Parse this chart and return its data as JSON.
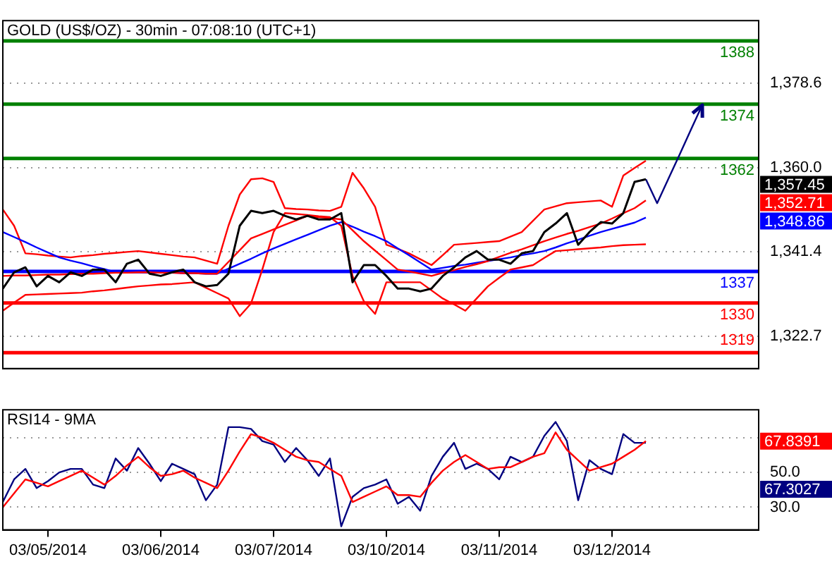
{
  "chart_data": [
    {
      "type": "line",
      "title": "GOLD (US$/OZ) - 30min - 07:08:10 (UTC+1)",
      "categories": [
        null,
        null,
        null,
        null,
        null,
        null,
        null,
        null,
        null,
        null,
        null,
        null,
        null,
        null,
        null,
        null,
        null,
        null,
        null,
        null,
        null,
        null,
        null,
        null,
        null,
        null,
        null,
        null,
        null,
        null,
        null,
        null,
        null,
        null,
        null,
        null,
        null,
        null,
        null,
        null,
        null,
        null,
        null,
        null,
        null,
        null,
        null,
        null,
        null,
        null,
        null,
        null,
        null,
        null,
        null,
        null,
        null,
        null,
        null,
        null,
        null,
        null,
        null,
        null,
        null,
        null,
        null,
        null
      ],
      "ylim": [
        1315.5,
        1392.5
      ],
      "yticks": [
        {
          "value": 1322.7,
          "label": "1,322.7"
        },
        {
          "value": 1341.4,
          "label": "1,341.4"
        },
        {
          "value": 1360.0,
          "label": "1,360.0"
        },
        {
          "value": 1378.6,
          "label": "1,378.6"
        }
      ],
      "grid": "y",
      "marker": "none",
      "series": [
        {
          "color": "#000000",
          "values": [
            1333.2,
            1336.8,
            1337.9,
            1333.7,
            1336.0,
            1334.6,
            1336.8,
            1336.0,
            1337.4,
            1337.4,
            1334.6,
            1338.7,
            1339.6,
            1336.5,
            1336.0,
            1336.8,
            1337.4,
            1334.6,
            1333.7,
            1334.0,
            1336.5,
            1347.1,
            1350.4,
            1349.9,
            1350.4,
            1349.3,
            1348.5,
            1349.3,
            1348.5,
            1348.5,
            1349.9,
            1334.6,
            1338.4,
            1338.4,
            1336.0,
            1333.2,
            1333.2,
            1332.6,
            1333.2,
            1336.0,
            1337.9,
            1340.1,
            1341.5,
            1339.6,
            1339.6,
            1338.7,
            1341.0,
            1341.5,
            1345.7,
            1347.6,
            1349.9,
            1342.9,
            1345.7,
            1347.9,
            1347.6,
            1349.9,
            1356.8,
            1357.4,
            null,
            null,
            null,
            null,
            null,
            null,
            null,
            null,
            null,
            null
          ]
        },
        {
          "color": "#ff0000",
          "values": [
            1336.0,
            1336.1,
            1336.1,
            1336.2,
            1336.3,
            1336.3,
            1336.4,
            1336.5,
            1336.5,
            1336.6,
            1336.7,
            1336.7,
            1336.8,
            1336.8,
            1336.7,
            1336.7,
            1336.6,
            1336.6,
            1336.5,
            1336.5,
            1339.1,
            1341.7,
            1344.3,
            1345.3,
            1346.3,
            1347.3,
            1348.3,
            1349.3,
            1349.0,
            1348.8,
            1348.5,
            1346.1,
            1343.7,
            1341.6,
            1339.5,
            1337.4,
            1337.0,
            1336.5,
            1336.0,
            1336.7,
            1337.3,
            1338.0,
            1338.6,
            1339.3,
            1340.2,
            1341.1,
            1341.9,
            1342.8,
            1343.7,
            1344.5,
            1345.3,
            1346.0,
            1346.8,
            1347.6,
            1348.7,
            1349.9,
            1351.0,
            1352.7,
            null,
            null,
            null,
            null,
            null,
            null,
            null,
            null,
            null,
            null
          ]
        },
        {
          "color": "#0000ff",
          "values": [
            1345.7,
            1344.6,
            1343.5,
            1342.3,
            1341.2,
            1340.1,
            1339.4,
            1338.8,
            1338.1,
            1337.5,
            1336.8,
            1336.8,
            1336.8,
            1336.7,
            1336.7,
            1336.7,
            1336.6,
            1336.6,
            1336.5,
            1336.5,
            1337.6,
            1338.7,
            1339.8,
            1341.0,
            1342.1,
            1343.1,
            1344.1,
            1345.1,
            1346.1,
            1347.1,
            1347.9,
            1346.9,
            1345.8,
            1344.8,
            1343.7,
            1342.1,
            1340.6,
            1339.0,
            1337.4,
            1337.8,
            1338.2,
            1338.5,
            1338.9,
            1339.3,
            1339.7,
            1340.1,
            1340.6,
            1341.0,
            1341.5,
            1342.3,
            1343.2,
            1344.0,
            1344.9,
            1345.7,
            1346.4,
            1347.1,
            1347.8,
            1348.9,
            null,
            null,
            null,
            null,
            null,
            null,
            null,
            null,
            null,
            null
          ]
        },
        {
          "color": "#ff0000",
          "values": [
            1350.7,
            1347.1,
            1341.0,
            1340.8,
            1340.5,
            1340.3,
            1340.1,
            1340.4,
            1340.6,
            1340.9,
            1341.1,
            1341.3,
            1341.5,
            1341.2,
            1340.9,
            1340.6,
            1340.3,
            1340.1,
            1339.4,
            1338.7,
            1347.1,
            1354.0,
            1357.4,
            1357.6,
            1356.8,
            1351.0,
            1350.8,
            1350.7,
            1350.5,
            1350.4,
            1351.3,
            1358.8,
            1355.4,
            1351.3,
            1342.9,
            1342.0,
            1341.0,
            1339.7,
            1338.4,
            1340.6,
            1342.9,
            1343.1,
            1343.3,
            1343.5,
            1343.7,
            1344.7,
            1345.7,
            1348.2,
            1350.7,
            1351.4,
            1352.1,
            1352.3,
            1352.5,
            1352.7,
            1351.3,
            1358.2,
            1359.9,
            1361.5,
            null,
            null,
            null,
            null,
            null,
            null,
            null,
            null,
            null,
            null
          ]
        },
        {
          "color": "#ff0000",
          "values": [
            1328.3,
            1330.1,
            1331.8,
            1331.9,
            1332.0,
            1332.1,
            1332.2,
            1332.3,
            1332.6,
            1332.8,
            1333.1,
            1333.4,
            1333.7,
            1333.9,
            1334.1,
            1334.2,
            1334.4,
            1334.6,
            1333.4,
            1332.2,
            1331.0,
            1327.1,
            1329.9,
            1337.4,
            1345.7,
            1349.9,
            1349.7,
            1349.5,
            1349.2,
            1349.0,
            1347.1,
            1336.0,
            1330.4,
            1327.6,
            1334.6,
            1334.6,
            1334.6,
            1334.6,
            1332.8,
            1331.0,
            1329.7,
            1328.3,
            1331.0,
            1333.7,
            1335.6,
            1337.4,
            1337.9,
            1338.4,
            1340.0,
            1341.5,
            1341.7,
            1341.9,
            1342.1,
            1342.3,
            1342.6,
            1342.8,
            1342.9,
            1343.0,
            null,
            null,
            null,
            null,
            null,
            null,
            null,
            null,
            null,
            null
          ]
        },
        {
          "color": "#000080",
          "values": [
            null,
            null,
            null,
            null,
            null,
            null,
            null,
            null,
            null,
            null,
            null,
            null,
            null,
            null,
            null,
            null,
            null,
            null,
            null,
            null,
            null,
            null,
            null,
            null,
            null,
            null,
            null,
            null,
            null,
            null,
            null,
            null,
            null,
            null,
            null,
            null,
            null,
            null,
            null,
            null,
            null,
            null,
            null,
            null,
            null,
            null,
            null,
            null,
            null,
            null,
            null,
            null,
            null,
            null,
            null,
            null,
            null,
            1357.4,
            1352.1,
            1357.5,
            1362.9,
            1368.4,
            1373.8,
            null,
            null,
            null,
            null,
            null
          ]
        }
      ],
      "ref_lines": [
        {
          "axis": "y",
          "value": 1388,
          "label": "1388",
          "color": "#008000"
        },
        {
          "axis": "y",
          "value": 1374,
          "label": "1374",
          "color": "#008000"
        },
        {
          "axis": "y",
          "value": 1362,
          "label": "1362",
          "color": "#008000"
        },
        {
          "axis": "y",
          "value": 1337,
          "label": "1337",
          "color": "#0000ff"
        },
        {
          "axis": "y",
          "value": 1330,
          "label": "1330",
          "color": "#ff0000"
        },
        {
          "axis": "y",
          "value": 1319,
          "label": "1319",
          "color": "#ff0000"
        }
      ],
      "annotations": [
        "1,357.45",
        "1,352.71",
        "1,348.86"
      ]
    },
    {
      "type": "line",
      "title": "RSI14 - 9MA",
      "categories": [
        null,
        null,
        null,
        null,
        "03/05/2014",
        null,
        null,
        null,
        null,
        null,
        null,
        null,
        null,
        null,
        "03/06/2014",
        null,
        null,
        null,
        null,
        null,
        null,
        null,
        null,
        null,
        "03/07/2014",
        null,
        null,
        null,
        null,
        null,
        null,
        null,
        null,
        null,
        "03/10/2014",
        null,
        null,
        null,
        null,
        null,
        null,
        null,
        null,
        null,
        "03/11/2014",
        null,
        null,
        null,
        null,
        null,
        null,
        null,
        null,
        null,
        "03/12/2014",
        null,
        null,
        null,
        null,
        null,
        null,
        null,
        null,
        null,
        null,
        null,
        null,
        null
      ],
      "ylim": [
        17,
        86
      ],
      "yticks": [
        {
          "value": 30,
          "label": "30.0"
        },
        {
          "value": 50,
          "label": "50.0"
        },
        {
          "value": 70,
          "label": null
        }
      ],
      "grid": "y",
      "marker": "none",
      "series": [
        {
          "color": "#ff0000",
          "values": [
            30,
            38,
            46,
            44,
            42,
            45,
            48,
            51,
            47,
            43,
            48,
            54,
            59,
            53,
            48,
            49,
            51,
            47,
            44,
            41,
            51,
            62,
            72,
            70,
            67,
            63,
            59,
            57,
            56,
            52,
            48,
            33,
            36,
            39,
            42,
            37,
            37,
            36,
            44,
            51,
            56,
            60,
            56,
            52,
            53,
            53,
            56,
            59,
            61,
            73,
            63,
            57,
            51,
            53,
            55,
            59,
            63,
            68,
            null,
            null,
            null,
            null,
            null,
            null,
            null,
            null,
            null,
            null
          ]
        },
        {
          "color": "#000080",
          "values": [
            33,
            46,
            52,
            41,
            45,
            50,
            52,
            52,
            43,
            41,
            58,
            51,
            64,
            55,
            45,
            55,
            52,
            49,
            34,
            43,
            76,
            76,
            75,
            68,
            66,
            56,
            64,
            57,
            48,
            58,
            19,
            36,
            41,
            43,
            46,
            32,
            36,
            28,
            48,
            59,
            67,
            52,
            55,
            52,
            46,
            59,
            56,
            59,
            71,
            79,
            68,
            34,
            57,
            52,
            49,
            72,
            67,
            67,
            null,
            null,
            null,
            null,
            null,
            null,
            null,
            null,
            null,
            null
          ]
        }
      ],
      "annotations": [
        "67.8391",
        "67.3027"
      ]
    }
  ]
}
